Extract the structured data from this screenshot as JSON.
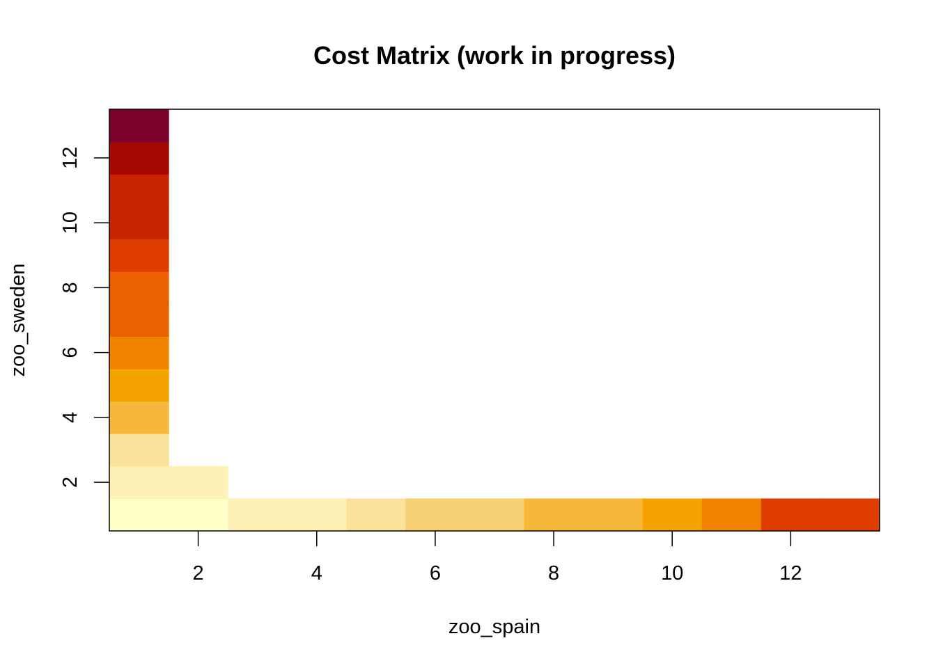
{
  "chart_data": {
    "type": "heatmap",
    "title": "Cost Matrix (work in progress)",
    "xlabel": "zoo_spain",
    "ylabel": "zoo_sweden",
    "xlim": [
      0.5,
      13.5
    ],
    "ylim": [
      0.5,
      13.5
    ],
    "x_ticks": [
      2,
      4,
      6,
      8,
      10,
      12
    ],
    "y_ticks": [
      2,
      4,
      6,
      8,
      10,
      12
    ],
    "grid": false,
    "cells": [
      {
        "x": 1,
        "y": 1,
        "color": "#FFFFC8"
      },
      {
        "x": 2,
        "y": 1,
        "color": "#FFFFC8"
      },
      {
        "x": 3,
        "y": 1,
        "color": "#FEF1B5"
      },
      {
        "x": 4,
        "y": 1,
        "color": "#FEF1B5"
      },
      {
        "x": 5,
        "y": 1,
        "color": "#FBE29A"
      },
      {
        "x": 6,
        "y": 1,
        "color": "#F7D073"
      },
      {
        "x": 7,
        "y": 1,
        "color": "#F7D073"
      },
      {
        "x": 8,
        "y": 1,
        "color": "#F6B73A"
      },
      {
        "x": 9,
        "y": 1,
        "color": "#F6B73A"
      },
      {
        "x": 10,
        "y": 1,
        "color": "#F4A300"
      },
      {
        "x": 11,
        "y": 1,
        "color": "#F18300"
      },
      {
        "x": 12,
        "y": 1,
        "color": "#E03D00"
      },
      {
        "x": 13,
        "y": 1,
        "color": "#E03D00"
      },
      {
        "x": 1,
        "y": 2,
        "color": "#FEF1B5"
      },
      {
        "x": 2,
        "y": 2,
        "color": "#FEF1B5"
      },
      {
        "x": 1,
        "y": 3,
        "color": "#FBE29A"
      },
      {
        "x": 1,
        "y": 4,
        "color": "#F6B73A"
      },
      {
        "x": 1,
        "y": 5,
        "color": "#F4A300"
      },
      {
        "x": 1,
        "y": 6,
        "color": "#F18300"
      },
      {
        "x": 1,
        "y": 7,
        "color": "#EB6100"
      },
      {
        "x": 1,
        "y": 8,
        "color": "#EB6100"
      },
      {
        "x": 1,
        "y": 9,
        "color": "#E03D00"
      },
      {
        "x": 1,
        "y": 10,
        "color": "#C52500"
      },
      {
        "x": 1,
        "y": 11,
        "color": "#C52500"
      },
      {
        "x": 1,
        "y": 12,
        "color": "#A50800"
      },
      {
        "x": 1,
        "y": 13,
        "color": "#7C002B"
      }
    ]
  }
}
